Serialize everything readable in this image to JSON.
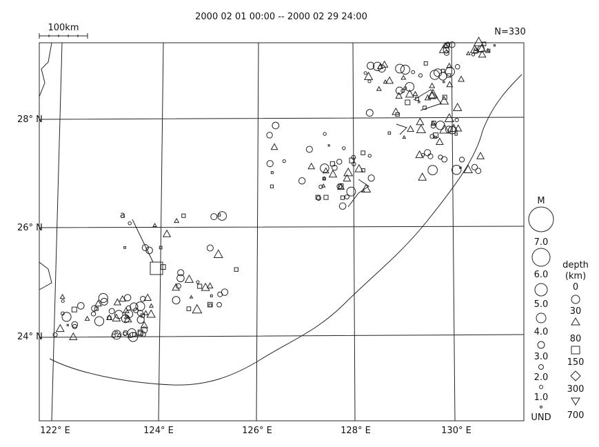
{
  "header": {
    "title": "2000 02 01 00:00 -- 2000 02 29 24:00",
    "count": "N=330",
    "scale": "100km"
  },
  "map": {
    "lat_labels": [
      "28° N",
      "26° N",
      "24° N"
    ],
    "lon_labels": [
      "122° E",
      "124° E",
      "126° E",
      "128° E",
      "130° E"
    ],
    "marker": "a"
  },
  "legend": {
    "magnitude_title": "M",
    "magnitudes": [
      "7.0",
      "6.0",
      "5.0",
      "4.0",
      "3.0",
      "2.0",
      "1.0",
      "UND"
    ],
    "depth_title": "depth",
    "depth_unit": "(km)",
    "depths": [
      "0",
      "30",
      "80",
      "150",
      "300",
      "700"
    ]
  }
}
